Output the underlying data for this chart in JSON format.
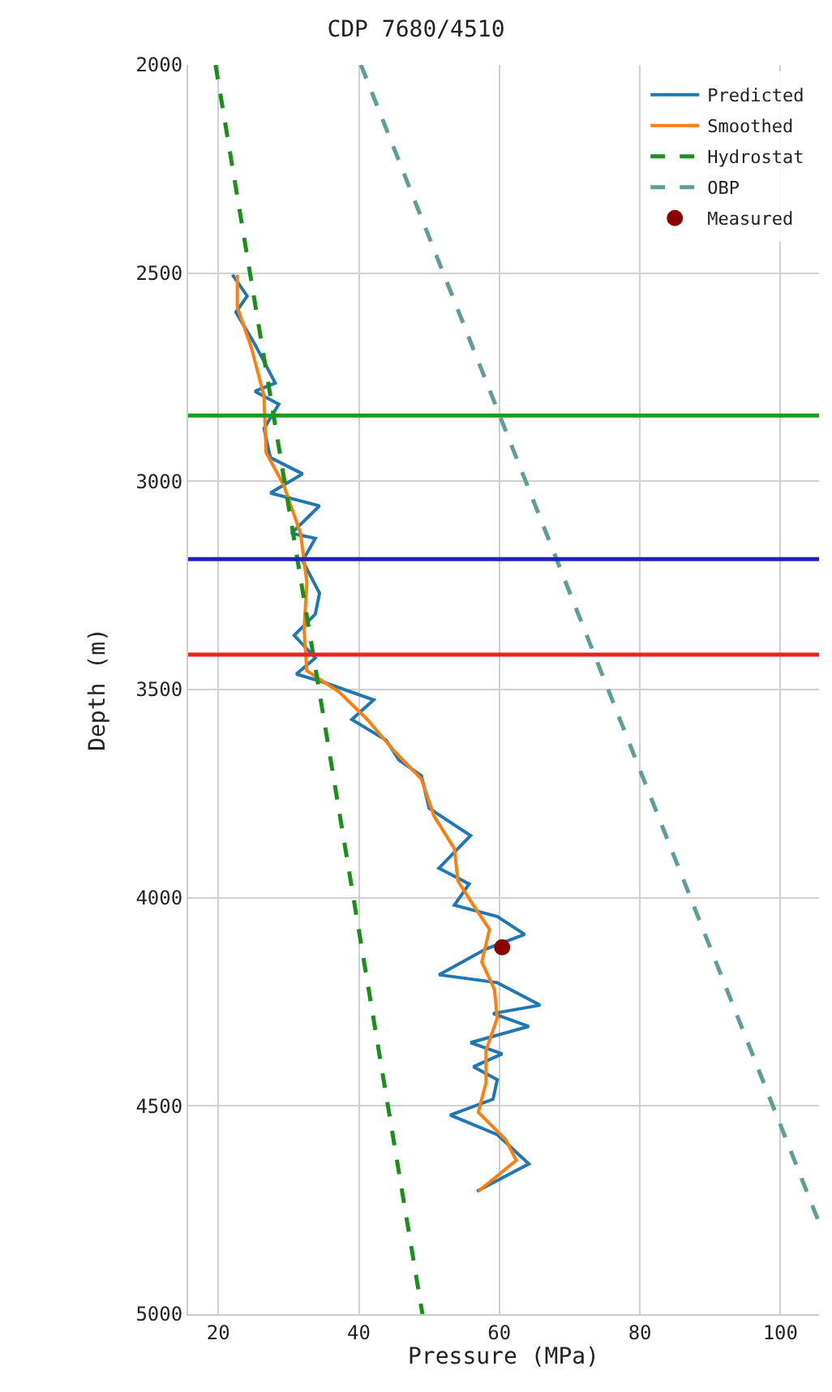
{
  "chart_data": {
    "type": "line",
    "title": "CDP 7680/4510",
    "xlabel": "Pressure (MPa)",
    "ylabel": "Depth (m)",
    "xlim": [
      15.7,
      105.5
    ],
    "xticks": [
      20,
      40,
      60,
      80,
      100
    ],
    "ylim": [
      5000,
      2000
    ],
    "yticks": [
      2000,
      2500,
      3000,
      3500,
      4000,
      4500,
      5000
    ],
    "grid": true,
    "legend": "top right",
    "series": [
      {
        "name": "Predicted",
        "color": "#1f77b4",
        "line_style": "solid",
        "marker": "none",
        "x": [
          22.0,
          24.1,
          22.5,
          25.2,
          28.1,
          25.2,
          28.6,
          26.5,
          27.4,
          32.0,
          27.4,
          34.4,
          30.4,
          33.8,
          32.0,
          34.4,
          33.8,
          30.8,
          33.8,
          31.1,
          34.9,
          42.1,
          39.0,
          43.9,
          45.7,
          48.9,
          50.0,
          55.9,
          51.4,
          55.7,
          53.6,
          59.7,
          63.6,
          58.1,
          51.4,
          59.7,
          65.8,
          59.1,
          64.2,
          55.9,
          60.4,
          56.3,
          59.7,
          59.1,
          53.0,
          59.7,
          64.2,
          56.8
        ],
        "values": [
          2504,
          2555,
          2594,
          2671,
          2764,
          2784,
          2815,
          2873,
          2943,
          2982,
          3028,
          3059,
          3125,
          3137,
          3191,
          3269,
          3319,
          3370,
          3424,
          3463,
          3482,
          3525,
          3572,
          3622,
          3669,
          3707,
          3785,
          3851,
          3929,
          3967,
          4018,
          4045,
          4088,
          4123,
          4185,
          4204,
          4258,
          4278,
          4309,
          4348,
          4375,
          4406,
          4437,
          4484,
          4522,
          4569,
          4639,
          4705
        ]
      },
      {
        "name": "Smoothed",
        "color": "#ff7f0e",
        "line_style": "solid",
        "marker": "none",
        "x": [
          22.7,
          22.7,
          24.7,
          26.5,
          26.8,
          29.3,
          31.7,
          32.6,
          32.2,
          32.6,
          37.2,
          41.2,
          45.1,
          48.9,
          50.7,
          53.6,
          54.1,
          56.3,
          58.6,
          57.5,
          59.3,
          59.7,
          58.1,
          58.1,
          57.0,
          60.9,
          62.4,
          57.0
        ],
        "values": [
          2504,
          2582,
          2679,
          2795,
          2931,
          3009,
          3125,
          3242,
          3358,
          3455,
          3506,
          3572,
          3649,
          3715,
          3804,
          3882,
          3960,
          4018,
          4076,
          4154,
          4220,
          4289,
          4367,
          4445,
          4515,
          4581,
          4631,
          4705
        ]
      },
      {
        "name": "Hydrostat",
        "color": "#1a8f1a",
        "line_style": "dashed",
        "marker": "none",
        "x": [
          19.6,
          49.05
        ],
        "values": [
          2000,
          5000
        ]
      },
      {
        "name": "OBP",
        "color": "#5f9e96",
        "line_style": "dashed",
        "marker": "none",
        "x": [
          40.3,
          105.5
        ],
        "values": [
          2000,
          4780
        ]
      },
      {
        "name": "Measured",
        "type": "scatter",
        "color": "#8b0000",
        "marker": "circle",
        "x": [
          60.4
        ],
        "values": [
          4119
        ]
      }
    ],
    "ref_lines": [
      {
        "axis": "y",
        "value": 2842,
        "color": "#1f9a1f"
      },
      {
        "axis": "y",
        "value": 3187,
        "color": "#2020c0"
      },
      {
        "axis": "y",
        "value": 3416,
        "color": "#ee2222"
      }
    ]
  }
}
